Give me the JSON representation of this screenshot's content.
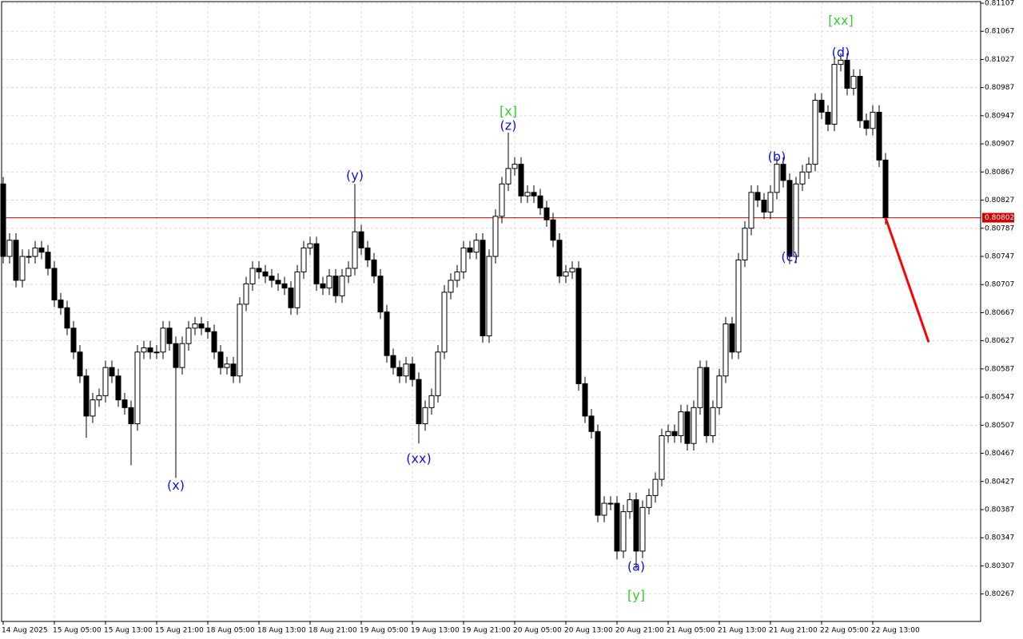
{
  "chart_data": {
    "type": "candlestick",
    "categories": [
      "14 Aug 2025",
      null,
      null,
      null,
      null,
      null,
      null,
      null,
      "15 Aug 05:00",
      null,
      null,
      null,
      null,
      null,
      null,
      null,
      "15 Aug 13:00",
      null,
      null,
      null,
      null,
      null,
      null,
      null,
      "15 Aug 21:00",
      null,
      null,
      null,
      null,
      null,
      null,
      null,
      "18 Aug 05:00",
      null,
      null,
      null,
      null,
      null,
      null,
      null,
      "18 Aug 13:00",
      null,
      null,
      null,
      null,
      null,
      null,
      null,
      "18 Aug 21:00",
      null,
      null,
      null,
      null,
      null,
      null,
      null,
      "19 Aug 05:00",
      null,
      null,
      null,
      null,
      null,
      null,
      null,
      "19 Aug 13:00",
      null,
      null,
      null,
      null,
      null,
      null,
      null,
      "19 Aug 21:00",
      null,
      null,
      null,
      null,
      null,
      null,
      null,
      "20 Aug 05:00",
      null,
      null,
      null,
      null,
      null,
      null,
      null,
      "20 Aug 13:00",
      null,
      null,
      null,
      null,
      null,
      null,
      null,
      "20 Aug 21:00",
      null,
      null,
      null,
      null,
      null,
      null,
      null,
      "21 Aug 05:00",
      null,
      null,
      null,
      null,
      null,
      null,
      null,
      "21 Aug 13:00",
      null,
      null,
      null,
      null,
      null,
      null,
      null,
      "21 Aug 21:00",
      null,
      null,
      null,
      null,
      null,
      null,
      null,
      "22 Aug 05:00",
      null,
      null,
      null,
      null,
      null,
      null,
      null,
      "22 Aug 13:00",
      null,
      null
    ],
    "open": [
      0.8085,
      0.80747,
      0.8077,
      0.80713,
      0.80747,
      0.80747,
      0.80759,
      0.80753,
      0.8073,
      0.80685,
      0.80674,
      0.80645,
      0.80611,
      0.80577,
      0.8052,
      0.80543,
      0.80549,
      0.80589,
      0.80577,
      0.80543,
      0.80532,
      0.80509,
      0.80611,
      0.80617,
      0.80611,
      0.80611,
      0.80645,
      0.80623,
      0.80589,
      0.80623,
      0.80645,
      0.80651,
      0.80645,
      0.8064,
      0.80611,
      0.80589,
      0.80594,
      0.80577,
      0.80679,
      0.80708,
      0.8073,
      0.80725,
      0.80719,
      0.80713,
      0.80708,
      0.80702,
      0.80674,
      0.80725,
      0.80759,
      0.80765,
      0.80708,
      0.80702,
      0.80719,
      0.80691,
      0.80719,
      0.8073,
      0.80782,
      0.80759,
      0.80742,
      0.80719,
      0.80668,
      0.80606,
      0.80589,
      0.80577,
      0.80594,
      0.80572,
      0.80509,
      0.80532,
      0.80549,
      0.80611,
      0.80696,
      0.80713,
      0.80725,
      0.80759,
      0.80753,
      0.8077,
      0.80634,
      0.80747,
      0.80804,
      0.8085,
      0.80872,
      0.80878,
      0.80833,
      0.80838,
      0.80833,
      0.80816,
      0.80799,
      0.8077,
      0.80719,
      0.80725,
      0.8073,
      0.80566,
      0.8052,
      0.80498,
      0.80379,
      0.80396,
      0.80396,
      0.80328,
      0.80384,
      0.80401,
      0.80328,
      0.8039,
      0.80407,
      0.8043,
      0.80492,
      0.80498,
      0.80492,
      0.80526,
      0.80481,
      0.80532,
      0.80589,
      0.80492,
      0.80532,
      0.80577,
      0.80651,
      0.80611,
      0.80742,
      0.80787,
      0.80838,
      0.80827,
      0.8081,
      0.80838,
      0.80878,
      0.80855,
      0.80747,
      0.8085,
      0.80867,
      0.80878,
      0.80969,
      0.80952,
      0.80935,
      0.8102,
      0.81026,
      0.80986,
      0.81003,
      0.8094,
      0.80929,
      0.80952,
      0.80884
    ],
    "high": [
      0.8086,
      0.8078,
      0.8078,
      0.80757,
      0.80757,
      0.80769,
      0.80769,
      0.80763,
      0.8074,
      0.80695,
      0.80684,
      0.80655,
      0.80621,
      0.80587,
      0.80553,
      0.80559,
      0.80599,
      0.80599,
      0.80587,
      0.80553,
      0.80542,
      0.80621,
      0.80627,
      0.80627,
      0.80621,
      0.80655,
      0.80655,
      0.80633,
      0.80633,
      0.80655,
      0.80661,
      0.80661,
      0.80655,
      0.8065,
      0.80621,
      0.80604,
      0.80604,
      0.80689,
      0.80718,
      0.8074,
      0.8074,
      0.80735,
      0.80729,
      0.80723,
      0.80718,
      0.80712,
      0.80735,
      0.80769,
      0.80775,
      0.80775,
      0.80718,
      0.80729,
      0.80729,
      0.80729,
      0.8074,
      0.8085,
      0.80792,
      0.80769,
      0.80752,
      0.80729,
      0.80678,
      0.80616,
      0.80599,
      0.80604,
      0.80604,
      0.80582,
      0.80542,
      0.80559,
      0.80621,
      0.80706,
      0.80723,
      0.80735,
      0.80769,
      0.80769,
      0.8078,
      0.8078,
      0.80757,
      0.80814,
      0.8086,
      0.80923,
      0.80888,
      0.80888,
      0.80848,
      0.80848,
      0.80843,
      0.80826,
      0.80809,
      0.8078,
      0.80735,
      0.8074,
      0.8074,
      0.80576,
      0.8053,
      0.80508,
      0.80406,
      0.80406,
      0.80406,
      0.80394,
      0.80411,
      0.80411,
      0.804,
      0.80417,
      0.8044,
      0.80502,
      0.80508,
      0.80508,
      0.80536,
      0.80536,
      0.80542,
      0.80599,
      0.80599,
      0.80542,
      0.80587,
      0.80661,
      0.80661,
      0.80752,
      0.80797,
      0.80848,
      0.80848,
      0.80837,
      0.80848,
      0.80888,
      0.80888,
      0.80865,
      0.8086,
      0.80877,
      0.80888,
      0.80979,
      0.80979,
      0.80962,
      0.8103,
      0.81036,
      0.81036,
      0.81013,
      0.81013,
      0.8095,
      0.80962,
      0.80962,
      0.80894
    ],
    "low": [
      0.80737,
      0.80737,
      0.80703,
      0.80703,
      0.80737,
      0.80737,
      0.80743,
      0.8072,
      0.80675,
      0.80664,
      0.80635,
      0.80601,
      0.80567,
      0.80489,
      0.8051,
      0.80533,
      0.80539,
      0.80567,
      0.80533,
      0.80522,
      0.8045,
      0.80499,
      0.80601,
      0.80601,
      0.80601,
      0.80601,
      0.80613,
      0.80432,
      0.80579,
      0.80613,
      0.80635,
      0.80635,
      0.8063,
      0.80601,
      0.80579,
      0.80579,
      0.80567,
      0.80567,
      0.80669,
      0.80698,
      0.80715,
      0.80709,
      0.80703,
      0.80698,
      0.80692,
      0.80664,
      0.80664,
      0.80715,
      0.80749,
      0.80698,
      0.80692,
      0.80692,
      0.80681,
      0.80681,
      0.80709,
      0.8072,
      0.80749,
      0.80732,
      0.80709,
      0.80658,
      0.80596,
      0.80579,
      0.80567,
      0.80567,
      0.80562,
      0.80481,
      0.80499,
      0.80522,
      0.80539,
      0.80601,
      0.80686,
      0.80703,
      0.80715,
      0.80743,
      0.80743,
      0.80624,
      0.80624,
      0.80737,
      0.80794,
      0.8084,
      0.80862,
      0.80823,
      0.80823,
      0.80823,
      0.80806,
      0.80789,
      0.8076,
      0.80709,
      0.80709,
      0.80715,
      0.80556,
      0.8051,
      0.80488,
      0.80369,
      0.80369,
      0.80386,
      0.80316,
      0.80318,
      0.80374,
      0.80303,
      0.80318,
      0.8038,
      0.80397,
      0.8042,
      0.80482,
      0.80482,
      0.80482,
      0.80471,
      0.80471,
      0.80522,
      0.80482,
      0.80482,
      0.80522,
      0.80567,
      0.80601,
      0.80601,
      0.80732,
      0.80777,
      0.80817,
      0.808,
      0.808,
      0.80828,
      0.80845,
      0.80736,
      0.80737,
      0.8084,
      0.80857,
      0.80868,
      0.80942,
      0.80925,
      0.80925,
      0.8101,
      0.80976,
      0.80976,
      0.8093,
      0.80919,
      0.80919,
      0.80874,
      0.80792
    ],
    "close": [
      0.80747,
      0.8077,
      0.80713,
      0.80747,
      0.80747,
      0.80759,
      0.80753,
      0.8073,
      0.80685,
      0.80674,
      0.80645,
      0.80611,
      0.80577,
      0.8052,
      0.80543,
      0.80549,
      0.80589,
      0.80577,
      0.80543,
      0.80532,
      0.80509,
      0.80611,
      0.80617,
      0.80611,
      0.80611,
      0.80645,
      0.80623,
      0.80589,
      0.80623,
      0.80645,
      0.80651,
      0.80645,
      0.8064,
      0.80611,
      0.80589,
      0.80594,
      0.80577,
      0.80679,
      0.80708,
      0.8073,
      0.80725,
      0.80719,
      0.80713,
      0.80708,
      0.80702,
      0.80674,
      0.80725,
      0.80759,
      0.80765,
      0.80708,
      0.80702,
      0.80719,
      0.80691,
      0.80719,
      0.8073,
      0.80782,
      0.80759,
      0.80742,
      0.80719,
      0.80668,
      0.80606,
      0.80589,
      0.80577,
      0.80594,
      0.80572,
      0.80509,
      0.80532,
      0.80549,
      0.80611,
      0.80696,
      0.80713,
      0.80725,
      0.80759,
      0.80753,
      0.8077,
      0.80634,
      0.80747,
      0.80804,
      0.8085,
      0.80872,
      0.80878,
      0.80833,
      0.80838,
      0.80833,
      0.80816,
      0.80799,
      0.8077,
      0.80719,
      0.80725,
      0.8073,
      0.80566,
      0.8052,
      0.80498,
      0.80379,
      0.80396,
      0.80396,
      0.80328,
      0.80384,
      0.80401,
      0.80328,
      0.8039,
      0.80407,
      0.8043,
      0.80492,
      0.80498,
      0.80492,
      0.80526,
      0.80481,
      0.80532,
      0.80589,
      0.80492,
      0.80532,
      0.80577,
      0.80651,
      0.80611,
      0.80742,
      0.80787,
      0.80838,
      0.80827,
      0.8081,
      0.80838,
      0.80878,
      0.80855,
      0.80747,
      0.8085,
      0.80867,
      0.80878,
      0.80969,
      0.80952,
      0.80935,
      0.8102,
      0.81026,
      0.80986,
      0.81003,
      0.8094,
      0.80929,
      0.80952,
      0.80884,
      0.80802
    ],
    "up_color": "#ffffff",
    "down_color": "#000000",
    "ylim": [
      0.80228,
      0.81107
    ],
    "yticks": [
      0.81107,
      0.81067,
      0.81027,
      0.80987,
      0.80947,
      0.80907,
      0.80867,
      0.80827,
      0.80787,
      0.80747,
      0.80707,
      0.80667,
      0.80627,
      0.80587,
      0.80547,
      0.80507,
      0.80467,
      0.80427,
      0.80387,
      0.80347,
      0.80307,
      0.80267
    ],
    "grid": true,
    "current_price": 0.80802,
    "current_price_color": "#d00000",
    "forecast": {
      "color": "#ff0000",
      "values": [
        0.80802,
        0.80625
      ]
    },
    "annotations": [
      {
        "text": "(x)",
        "color": "#1010e0"
      },
      {
        "text": "(y)",
        "color": "#1010e0"
      },
      {
        "text": "(xx)",
        "color": "#1010e0"
      },
      {
        "text": "[x]",
        "color": "#33cc33"
      },
      {
        "text": "(z)",
        "color": "#1010e0"
      },
      {
        "text": "(a)",
        "color": "#1010e0"
      },
      {
        "text": "[y]",
        "color": "#33cc33"
      },
      {
        "text": "(b)",
        "color": "#1010e0"
      },
      {
        "text": "(c)",
        "color": "#1010e0"
      },
      {
        "text": "(d)",
        "color": "#1010e0"
      },
      {
        "text": "[xx]",
        "color": "#33cc33"
      }
    ]
  }
}
